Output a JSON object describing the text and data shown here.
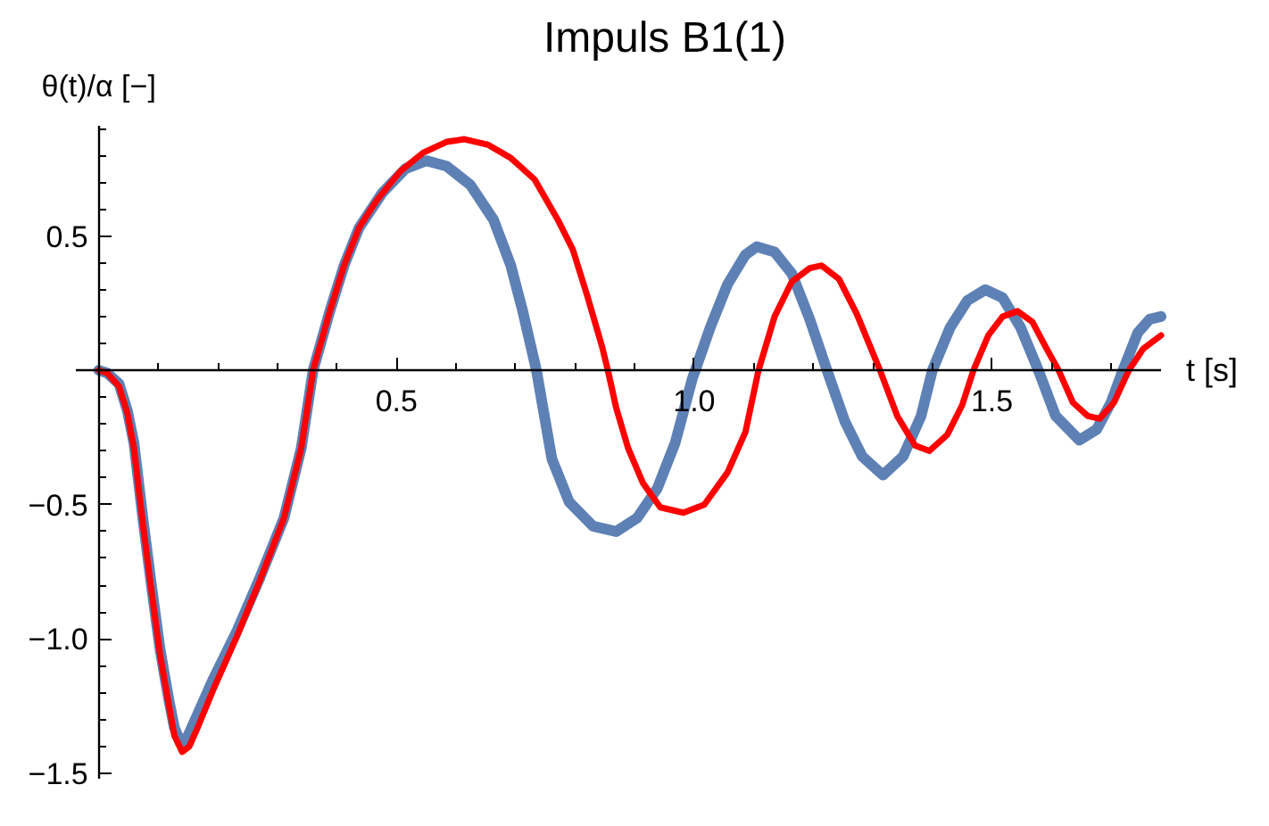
{
  "chart_data": {
    "type": "line",
    "title": "Impuls B1(1)",
    "xlabel": "t [s]",
    "ylabel": "θ(t)/α [−]",
    "xlim": [
      -0.04,
      1.784
    ],
    "ylim": [
      -1.52,
      0.91
    ],
    "xticks": [
      {
        "value": 0.1,
        "label": null
      },
      {
        "value": 0.2,
        "label": null
      },
      {
        "value": 0.3,
        "label": null
      },
      {
        "value": 0.4,
        "label": null
      },
      0.5,
      {
        "value": 0.6,
        "label": null
      },
      {
        "value": 0.7,
        "label": null
      },
      {
        "value": 0.8,
        "label": null
      },
      {
        "value": 0.9,
        "label": null
      },
      {
        "value": 1,
        "label": "1.0"
      },
      {
        "value": 1.1,
        "label": null
      },
      {
        "value": 1.2,
        "label": null
      },
      {
        "value": 1.3,
        "label": null
      },
      {
        "value": 1.4,
        "label": null
      },
      1.5,
      {
        "value": 1.6,
        "label": null
      },
      {
        "value": 1.7,
        "label": null
      }
    ],
    "yticks": [
      {
        "value": -1.5,
        "label": "−1.5"
      },
      {
        "value": -1.4,
        "label": null
      },
      {
        "value": -1.3,
        "label": null
      },
      {
        "value": -1.2,
        "label": null
      },
      {
        "value": -1.1,
        "label": null
      },
      {
        "value": -1,
        "label": "−1.0"
      },
      {
        "value": -0.9,
        "label": null
      },
      {
        "value": -0.8,
        "label": null
      },
      {
        "value": -0.7,
        "label": null
      },
      {
        "value": -0.6,
        "label": null
      },
      {
        "value": -0.5,
        "label": "−0.5"
      },
      {
        "value": -0.4,
        "label": null
      },
      {
        "value": -0.3,
        "label": null
      },
      {
        "value": -0.2,
        "label": null
      },
      {
        "value": -0.1,
        "label": null
      },
      {
        "value": 0.1,
        "label": null
      },
      {
        "value": 0.2,
        "label": null
      },
      {
        "value": 0.3,
        "label": null
      },
      {
        "value": 0.4,
        "label": null
      },
      0.5,
      {
        "value": 0.6,
        "label": null
      },
      {
        "value": 0.7,
        "label": null
      },
      {
        "value": 0.8,
        "label": null
      },
      {
        "value": 0.9,
        "label": null
      }
    ],
    "series": [
      {
        "color": "#5e81b5",
        "x": [
          0,
          0.014,
          0.034,
          0.048,
          0.059,
          0.074,
          0.089,
          0.103,
          0.118,
          0.127,
          0.138,
          0.15,
          0.166,
          0.192,
          0.232,
          0.271,
          0.311,
          0.34,
          0.36,
          0.388,
          0.412,
          0.437,
          0.476,
          0.515,
          0.55,
          0.584,
          0.624,
          0.663,
          0.692,
          0.712,
          0.735,
          0.761,
          0.79,
          0.83,
          0.869,
          0.904,
          0.938,
          0.968,
          0.997,
          1.027,
          1.056,
          1.086,
          1.105,
          1.135,
          1.164,
          1.194,
          1.223,
          1.253,
          1.282,
          1.317,
          1.351,
          1.381,
          1.4,
          1.43,
          1.459,
          1.489,
          1.518,
          1.548,
          1.578,
          1.607,
          1.647,
          1.676,
          1.7,
          1.72,
          1.745,
          1.765,
          1.784
        ],
        "values": [
          0,
          -0.01,
          -0.05,
          -0.15,
          -0.27,
          -0.55,
          -0.81,
          -1.04,
          -1.23,
          -1.33,
          -1.39,
          -1.36,
          -1.28,
          -1.15,
          -0.97,
          -0.77,
          -0.55,
          -0.29,
          0,
          0.22,
          0.39,
          0.53,
          0.66,
          0.75,
          0.78,
          0.76,
          0.69,
          0.56,
          0.39,
          0.22,
          0,
          -0.33,
          -0.49,
          -0.58,
          -0.6,
          -0.55,
          -0.44,
          -0.27,
          -0.03,
          0.16,
          0.32,
          0.43,
          0.46,
          0.44,
          0.36,
          0.19,
          0,
          -0.19,
          -0.32,
          -0.39,
          -0.32,
          -0.17,
          0,
          0.16,
          0.26,
          0.3,
          0.27,
          0.16,
          0,
          -0.17,
          -0.26,
          -0.22,
          -0.12,
          0,
          0.14,
          0.19,
          0.2
        ]
      },
      {
        "color": "#ff0000",
        "x": [
          0,
          0.014,
          0.034,
          0.048,
          0.059,
          0.074,
          0.089,
          0.103,
          0.118,
          0.127,
          0.14,
          0.152,
          0.166,
          0.192,
          0.232,
          0.271,
          0.311,
          0.34,
          0.36,
          0.388,
          0.412,
          0.437,
          0.466,
          0.506,
          0.545,
          0.584,
          0.614,
          0.653,
          0.692,
          0.732,
          0.771,
          0.796,
          0.82,
          0.845,
          0.855,
          0.869,
          0.889,
          0.914,
          0.943,
          0.982,
          1.017,
          1.056,
          1.086,
          1.108,
          1.135,
          1.164,
          1.194,
          1.214,
          1.243,
          1.273,
          1.312,
          1.341,
          1.371,
          1.395,
          1.425,
          1.45,
          1.469,
          1.494,
          1.518,
          1.543,
          1.568,
          1.592,
          1.612,
          1.636,
          1.661,
          1.681,
          1.705,
          1.73,
          1.754,
          1.784
        ],
        "values": [
          0,
          -0.01,
          -0.06,
          -0.16,
          -0.29,
          -0.57,
          -0.83,
          -1.06,
          -1.25,
          -1.36,
          -1.42,
          -1.4,
          -1.33,
          -1.19,
          -0.99,
          -0.78,
          -0.55,
          -0.29,
          0,
          0.22,
          0.39,
          0.53,
          0.63,
          0.74,
          0.81,
          0.85,
          0.86,
          0.84,
          0.79,
          0.71,
          0.56,
          0.45,
          0.28,
          0.09,
          0,
          -0.14,
          -0.29,
          -0.42,
          -0.51,
          -0.53,
          -0.5,
          -0.38,
          -0.23,
          0,
          0.2,
          0.33,
          0.38,
          0.39,
          0.34,
          0.21,
          0,
          -0.17,
          -0.28,
          -0.3,
          -0.24,
          -0.13,
          0,
          0.13,
          0.2,
          0.22,
          0.18,
          0.08,
          0,
          -0.12,
          -0.17,
          -0.18,
          -0.12,
          0,
          0.08,
          0.13
        ]
      }
    ]
  }
}
